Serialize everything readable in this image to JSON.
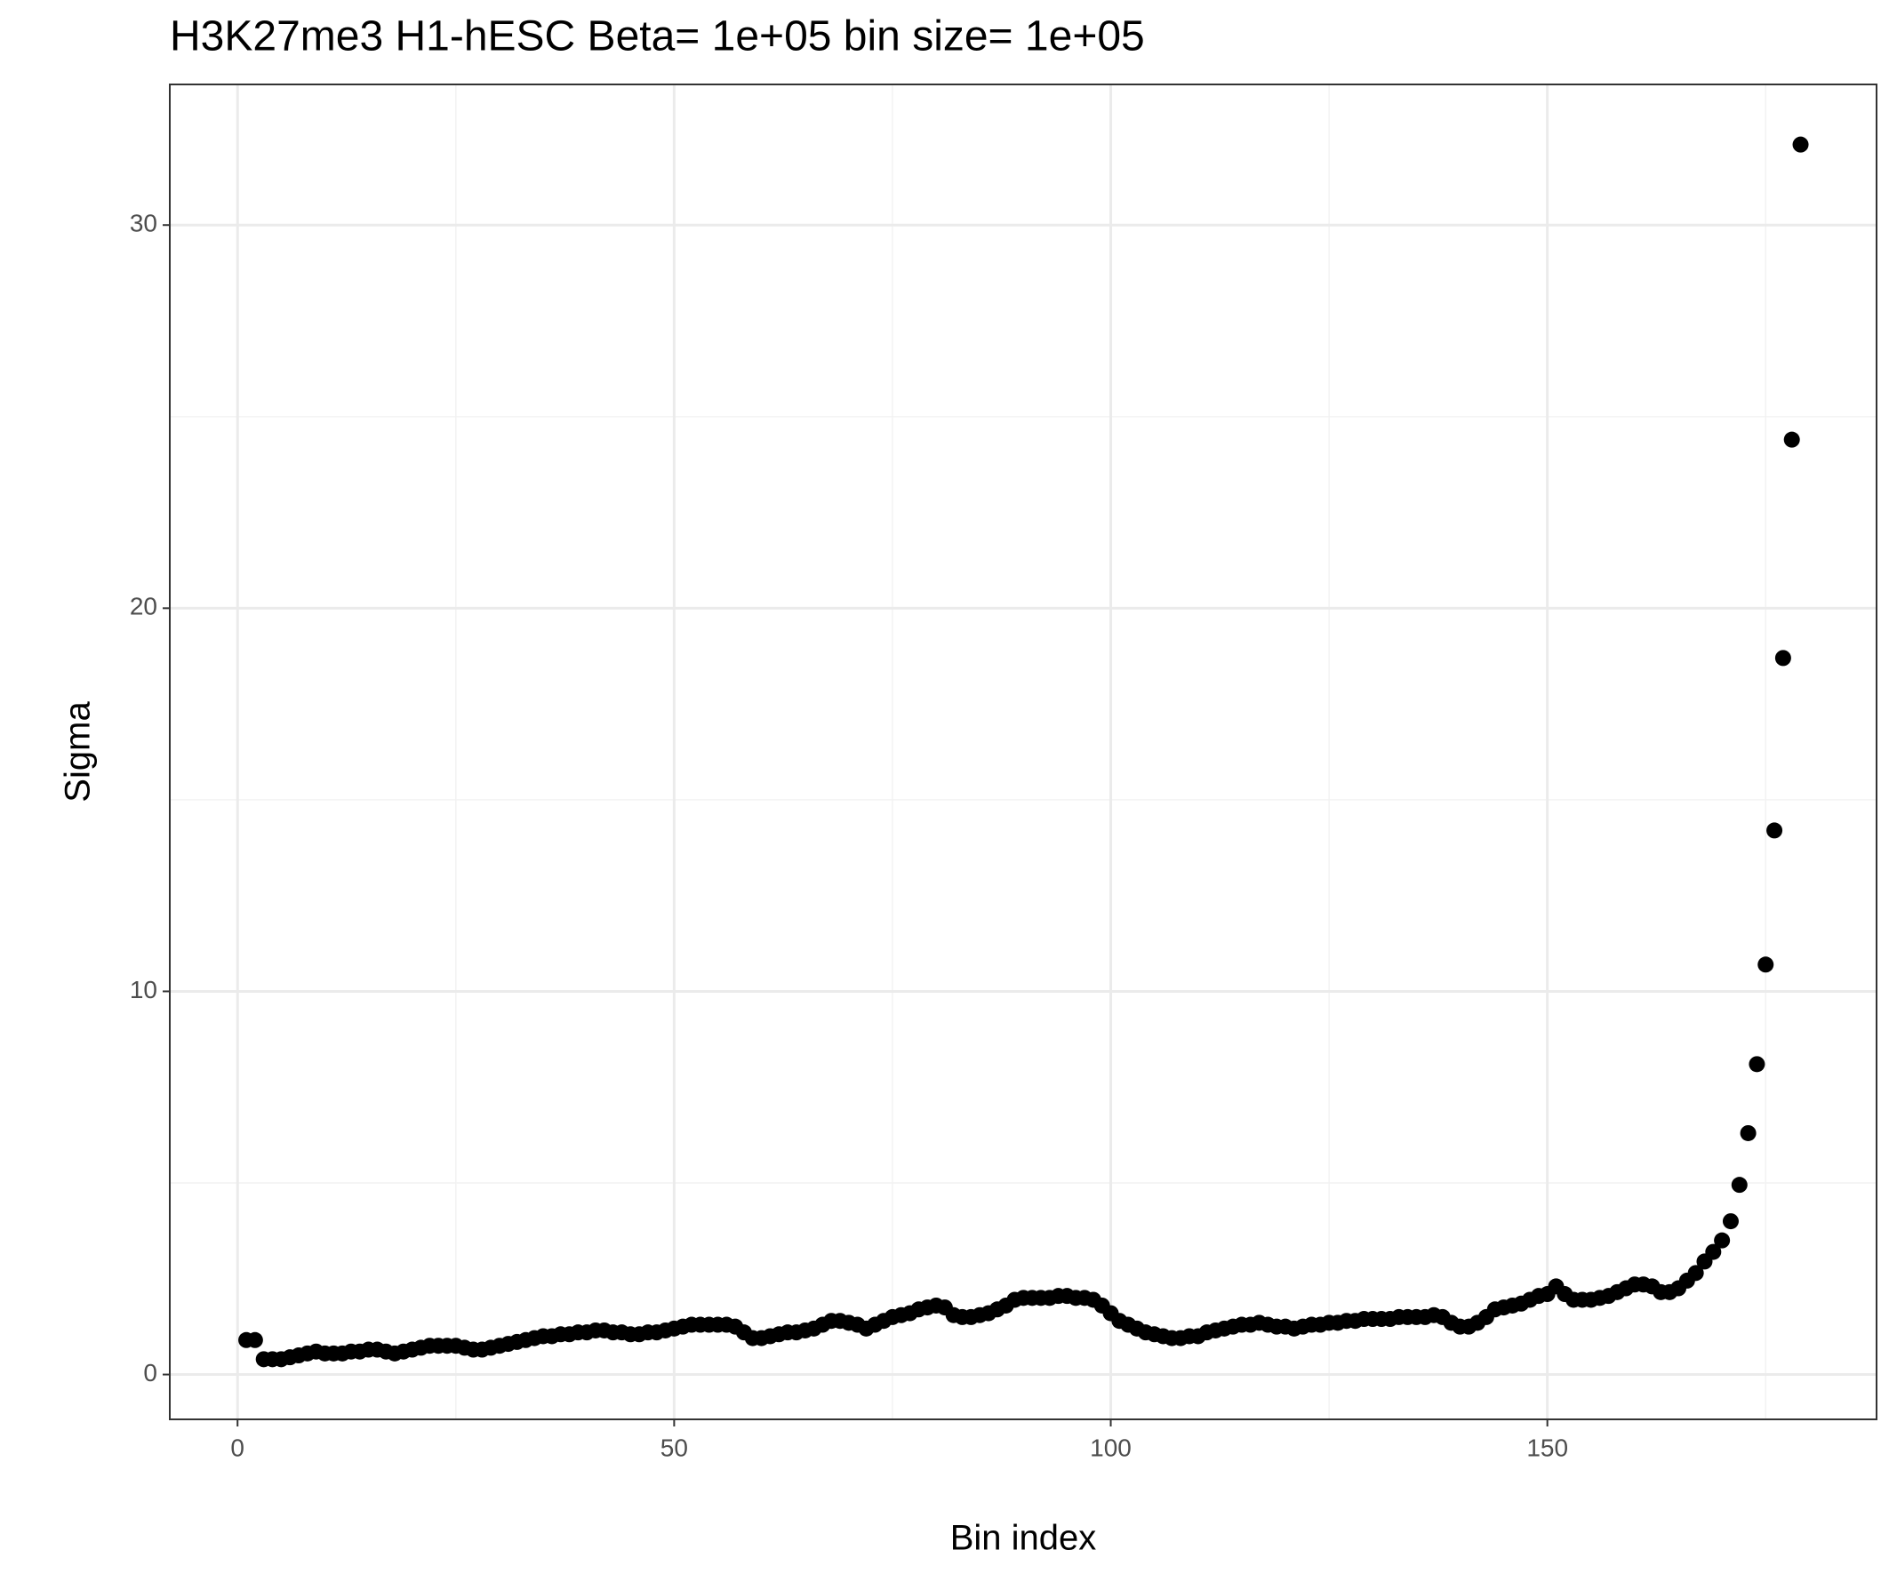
{
  "chart_data": {
    "type": "scatter",
    "title": "H3K27me3 H1-hESC  Beta=  1e+05  bin size=  1e+05",
    "x_label": "Bin index",
    "y_label": "Sigma",
    "color": "#000000",
    "xlim": [
      -7.76,
      187.7
    ],
    "ylim": [
      -1.17,
      33.67
    ],
    "xticks": [
      0,
      50,
      100,
      150
    ],
    "yticks": [
      0,
      10,
      20,
      30
    ],
    "xminor": [
      25,
      75,
      125,
      175
    ],
    "yminor": [
      5,
      15,
      25
    ],
    "grid": true,
    "x": [
      1,
      2,
      3,
      4,
      5,
      6,
      7,
      8,
      9,
      10,
      11,
      12,
      13,
      14,
      15,
      16,
      17,
      18,
      19,
      20,
      21,
      22,
      23,
      24,
      25,
      26,
      27,
      28,
      29,
      30,
      31,
      32,
      33,
      34,
      35,
      36,
      37,
      38,
      39,
      40,
      41,
      42,
      43,
      44,
      45,
      46,
      47,
      48,
      49,
      50,
      51,
      52,
      53,
      54,
      55,
      56,
      57,
      58,
      59,
      60,
      61,
      62,
      63,
      64,
      65,
      66,
      67,
      68,
      69,
      70,
      71,
      72,
      73,
      74,
      75,
      76,
      77,
      78,
      79,
      80,
      81,
      82,
      83,
      84,
      85,
      86,
      87,
      88,
      89,
      90,
      91,
      92,
      93,
      94,
      95,
      96,
      97,
      98,
      99,
      100,
      101,
      102,
      103,
      104,
      105,
      106,
      107,
      108,
      109,
      110,
      111,
      112,
      113,
      114,
      115,
      116,
      117,
      118,
      119,
      120,
      121,
      122,
      123,
      124,
      125,
      126,
      127,
      128,
      129,
      130,
      131,
      132,
      133,
      134,
      135,
      136,
      137,
      138,
      139,
      140,
      141,
      142,
      143,
      144,
      145,
      146,
      147,
      148,
      149,
      150,
      151,
      152,
      153,
      154,
      155,
      156,
      157,
      158,
      159,
      160,
      161,
      162,
      163,
      164,
      165,
      166,
      167,
      168,
      169,
      170,
      171,
      172,
      173,
      174,
      175,
      176,
      177,
      178,
      179
    ],
    "values": [
      0.9,
      0.9,
      0.4,
      0.4,
      0.4,
      0.45,
      0.5,
      0.55,
      0.6,
      0.55,
      0.55,
      0.55,
      0.6,
      0.6,
      0.65,
      0.65,
      0.6,
      0.55,
      0.6,
      0.65,
      0.7,
      0.75,
      0.75,
      0.75,
      0.75,
      0.7,
      0.65,
      0.65,
      0.7,
      0.75,
      0.8,
      0.85,
      0.9,
      0.95,
      1.0,
      1.0,
      1.05,
      1.05,
      1.1,
      1.1,
      1.15,
      1.15,
      1.1,
      1.1,
      1.05,
      1.05,
      1.1,
      1.1,
      1.15,
      1.2,
      1.25,
      1.3,
      1.3,
      1.3,
      1.3,
      1.3,
      1.25,
      1.1,
      0.95,
      0.95,
      1.0,
      1.05,
      1.1,
      1.1,
      1.15,
      1.2,
      1.3,
      1.4,
      1.4,
      1.35,
      1.3,
      1.2,
      1.3,
      1.4,
      1.5,
      1.55,
      1.6,
      1.7,
      1.75,
      1.8,
      1.75,
      1.55,
      1.5,
      1.5,
      1.55,
      1.6,
      1.7,
      1.8,
      1.95,
      2.0,
      2.0,
      2.0,
      2.0,
      2.05,
      2.05,
      2.0,
      2.0,
      1.95,
      1.8,
      1.6,
      1.4,
      1.3,
      1.2,
      1.1,
      1.05,
      1.0,
      0.95,
      0.95,
      1.0,
      1.0,
      1.1,
      1.15,
      1.2,
      1.25,
      1.3,
      1.3,
      1.35,
      1.3,
      1.25,
      1.25,
      1.2,
      1.25,
      1.3,
      1.3,
      1.35,
      1.35,
      1.4,
      1.4,
      1.45,
      1.45,
      1.45,
      1.45,
      1.5,
      1.5,
      1.5,
      1.5,
      1.55,
      1.5,
      1.35,
      1.25,
      1.25,
      1.35,
      1.5,
      1.7,
      1.75,
      1.8,
      1.85,
      1.95,
      2.05,
      2.1,
      2.3,
      2.1,
      1.95,
      1.95,
      1.95,
      2.0,
      2.05,
      2.15,
      2.25,
      2.35,
      2.35,
      2.3,
      2.15,
      2.15,
      2.25,
      2.45,
      2.65,
      2.95,
      3.2,
      3.5,
      4.0,
      4.95,
      6.3,
      8.1,
      10.7,
      14.2,
      18.7,
      24.4,
      32.1
    ]
  }
}
